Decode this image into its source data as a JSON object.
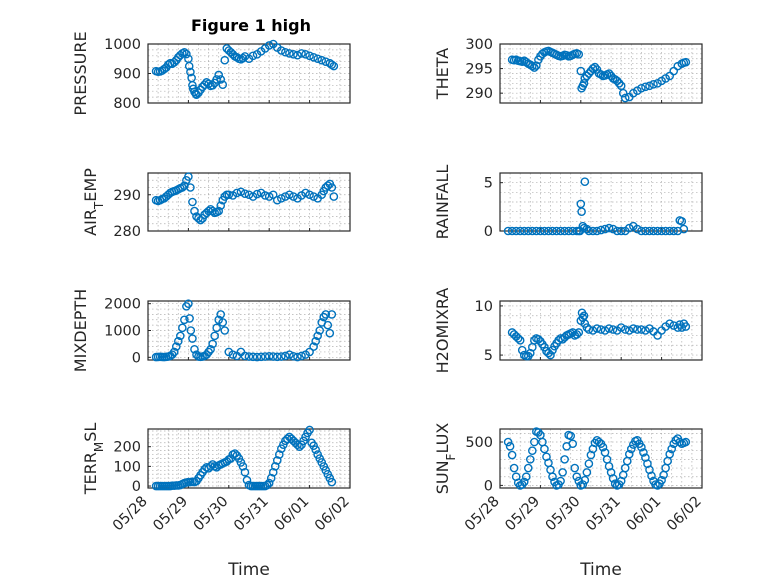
{
  "figure_title": "Figure 1 high",
  "colors": {
    "marker": "#0072BD",
    "axis": "#262626",
    "grid": "#b0b0b0"
  },
  "chart_data": [
    {
      "type": "scatter",
      "title": "Figure 1 high",
      "ylabel": "PRESSURE",
      "ylim": [
        800,
        1000
      ],
      "yticks": [
        "800",
        "900",
        "1000"
      ],
      "xlim": [
        0,
        5
      ],
      "xticks": [],
      "xlabel": "",
      "grid": true,
      "x": [
        0.2,
        0.25,
        0.3,
        0.35,
        0.4,
        0.45,
        0.5,
        0.55,
        0.6,
        0.65,
        0.7,
        0.75,
        0.8,
        0.85,
        0.9,
        0.95,
        1.0,
        1.02,
        1.05,
        1.08,
        1.1,
        1.12,
        1.15,
        1.18,
        1.2,
        1.25,
        1.3,
        1.35,
        1.4,
        1.45,
        1.5,
        1.55,
        1.6,
        1.65,
        1.7,
        1.75,
        1.8,
        1.85,
        1.9,
        1.95,
        2.0,
        2.05,
        2.1,
        2.15,
        2.2,
        2.25,
        2.3,
        2.35,
        2.4,
        2.5,
        2.6,
        2.7,
        2.8,
        2.9,
        3.0,
        3.1,
        3.2,
        3.3,
        3.4,
        3.5,
        3.6,
        3.7,
        3.8,
        3.9,
        4.0,
        4.1,
        4.2,
        4.3,
        4.4,
        4.5,
        4.55,
        4.6
      ],
      "y": [
        908,
        906,
        907,
        910,
        915,
        920,
        930,
        935,
        933,
        938,
        945,
        955,
        962,
        968,
        972,
        966,
        950,
        925,
        905,
        885,
        860,
        848,
        838,
        832,
        828,
        835,
        845,
        855,
        862,
        870,
        865,
        858,
        860,
        868,
        880,
        895,
        880,
        862,
        945,
        985,
        978,
        972,
        965,
        958,
        955,
        950,
        948,
        952,
        958,
        950,
        960,
        965,
        975,
        985,
        995,
        1000,
        988,
        978,
        972,
        968,
        965,
        962,
        968,
        965,
        960,
        955,
        950,
        945,
        940,
        935,
        930,
        925
      ]
    },
    {
      "type": "scatter",
      "ylabel": "THETA",
      "ylim": [
        288,
        300
      ],
      "yticks": [
        "290",
        "295",
        "300"
      ],
      "xlim": [
        0,
        5
      ],
      "xticks": [],
      "xlabel": "",
      "grid": true,
      "x": [
        0.3,
        0.35,
        0.4,
        0.45,
        0.5,
        0.55,
        0.6,
        0.65,
        0.7,
        0.75,
        0.8,
        0.85,
        0.9,
        0.95,
        1.0,
        1.05,
        1.1,
        1.15,
        1.2,
        1.25,
        1.3,
        1.35,
        1.4,
        1.45,
        1.5,
        1.55,
        1.6,
        1.65,
        1.7,
        1.75,
        1.8,
        1.85,
        1.9,
        1.95,
        2.0,
        2.02,
        2.05,
        2.08,
        2.1,
        2.15,
        2.2,
        2.25,
        2.3,
        2.35,
        2.4,
        2.45,
        2.5,
        2.55,
        2.6,
        2.65,
        2.7,
        2.75,
        2.8,
        2.85,
        2.9,
        2.95,
        3.0,
        3.05,
        3.1,
        3.2,
        3.3,
        3.4,
        3.5,
        3.6,
        3.7,
        3.8,
        3.9,
        4.0,
        4.1,
        4.2,
        4.3,
        4.4,
        4.5,
        4.55,
        4.6
      ],
      "y": [
        296.8,
        296.7,
        296.8,
        296.6,
        296.5,
        296.4,
        296.6,
        296.3,
        296.0,
        295.8,
        295.5,
        295.2,
        295.6,
        296.8,
        297.5,
        298.0,
        298.3,
        298.5,
        298.6,
        298.4,
        298.2,
        298.0,
        297.8,
        297.6,
        297.5,
        297.6,
        297.8,
        297.7,
        297.5,
        297.6,
        297.8,
        298.0,
        298.1,
        297.9,
        294.5,
        291.0,
        291.5,
        292.0,
        293.0,
        293.5,
        294.0,
        294.5,
        295.0,
        295.3,
        294.8,
        294.0,
        293.8,
        293.5,
        293.6,
        293.8,
        294.0,
        293.5,
        293.0,
        292.8,
        292.5,
        292.0,
        291.5,
        290.0,
        289.0,
        289.2,
        290.0,
        290.5,
        291.0,
        291.3,
        291.5,
        291.8,
        292.0,
        292.5,
        293.0,
        293.5,
        294.5,
        295.5,
        296.0,
        296.2,
        296.3
      ]
    },
    {
      "type": "scatter",
      "ylabel": "AIR_TEMP",
      "ylim": [
        280,
        296
      ],
      "yticks": [
        "280",
        "290"
      ],
      "xlim": [
        0,
        5
      ],
      "xticks": [],
      "xlabel": "",
      "grid": true,
      "x": [
        0.2,
        0.25,
        0.3,
        0.35,
        0.4,
        0.45,
        0.5,
        0.55,
        0.6,
        0.65,
        0.7,
        0.75,
        0.8,
        0.85,
        0.9,
        0.95,
        1.0,
        1.05,
        1.1,
        1.15,
        1.2,
        1.25,
        1.3,
        1.35,
        1.4,
        1.45,
        1.5,
        1.55,
        1.6,
        1.65,
        1.7,
        1.75,
        1.8,
        1.85,
        1.9,
        1.95,
        2.0,
        2.1,
        2.2,
        2.3,
        2.4,
        2.5,
        2.6,
        2.7,
        2.8,
        2.9,
        3.0,
        3.1,
        3.2,
        3.3,
        3.4,
        3.5,
        3.6,
        3.7,
        3.8,
        3.9,
        4.0,
        4.1,
        4.2,
        4.3,
        4.35,
        4.4,
        4.45,
        4.5,
        4.55,
        4.6
      ],
      "y": [
        288.5,
        288.3,
        288.5,
        288.8,
        289.0,
        289.5,
        290.0,
        290.5,
        290.8,
        291.0,
        291.2,
        291.5,
        291.8,
        292.0,
        292.5,
        294.0,
        295.0,
        292.0,
        288.0,
        285.5,
        284.0,
        283.5,
        283.0,
        283.5,
        284.5,
        285.0,
        285.5,
        286.0,
        285.5,
        285.0,
        285.2,
        285.5,
        287.0,
        288.5,
        289.5,
        290.0,
        290.0,
        289.8,
        290.5,
        290.8,
        290.3,
        290.0,
        289.5,
        290.2,
        290.5,
        289.8,
        289.5,
        290.0,
        288.5,
        289.0,
        289.5,
        290.0,
        289.5,
        289.0,
        289.8,
        290.5,
        290.0,
        289.5,
        289.0,
        290.0,
        291.0,
        292.0,
        292.5,
        293.0,
        292.0,
        289.5
      ]
    },
    {
      "type": "scatter",
      "ylabel": "RAINFALL",
      "ylim": [
        0,
        6
      ],
      "yticks": [
        "0",
        "5"
      ],
      "xlim": [
        0,
        5
      ],
      "xticks": [],
      "xlabel": "",
      "grid": true,
      "x": [
        0.2,
        0.3,
        0.4,
        0.5,
        0.6,
        0.7,
        0.8,
        0.9,
        1.0,
        1.1,
        1.2,
        1.3,
        1.4,
        1.5,
        1.6,
        1.7,
        1.8,
        1.9,
        1.95,
        1.98,
        2.0,
        2.02,
        2.05,
        2.08,
        2.1,
        2.15,
        2.2,
        2.3,
        2.4,
        2.5,
        2.6,
        2.7,
        2.8,
        2.9,
        3.0,
        3.1,
        3.2,
        3.3,
        3.4,
        3.5,
        3.6,
        3.7,
        3.8,
        3.9,
        4.0,
        4.1,
        4.2,
        4.3,
        4.4,
        4.45,
        4.5,
        4.55
      ],
      "y": [
        0,
        0,
        0,
        0,
        0,
        0,
        0,
        0,
        0,
        0,
        0,
        0,
        0,
        0,
        0,
        0,
        0,
        0,
        0,
        0,
        2.8,
        2.0,
        0.5,
        0.3,
        5.1,
        0.2,
        0,
        0,
        0,
        0.1,
        0.2,
        0.3,
        0.2,
        0,
        0,
        0,
        0.3,
        0.5,
        0.2,
        0,
        0,
        0,
        0,
        0,
        0,
        0,
        0,
        0,
        0,
        1.1,
        1.0,
        0.2
      ]
    },
    {
      "type": "scatter",
      "ylabel": "MIXDEPTH",
      "ylim": [
        -100,
        2100
      ],
      "yticks": [
        "0",
        "1000",
        "2000"
      ],
      "xlim": [
        0,
        5
      ],
      "xticks": [],
      "xlabel": "",
      "grid": true,
      "x": [
        0.2,
        0.25,
        0.3,
        0.35,
        0.4,
        0.45,
        0.5,
        0.55,
        0.6,
        0.65,
        0.7,
        0.75,
        0.8,
        0.85,
        0.9,
        0.95,
        1.0,
        1.03,
        1.06,
        1.1,
        1.15,
        1.2,
        1.25,
        1.3,
        1.35,
        1.4,
        1.45,
        1.5,
        1.55,
        1.6,
        1.65,
        1.7,
        1.75,
        1.8,
        1.85,
        1.9,
        2.0,
        2.1,
        2.2,
        2.3,
        2.4,
        2.5,
        2.6,
        2.7,
        2.8,
        2.9,
        3.0,
        3.1,
        3.2,
        3.3,
        3.4,
        3.5,
        3.6,
        3.7,
        3.8,
        3.9,
        4.0,
        4.1,
        4.15,
        4.2,
        4.25,
        4.3,
        4.35,
        4.4,
        4.45,
        4.5,
        4.55
      ],
      "y": [
        10,
        15,
        20,
        15,
        10,
        20,
        30,
        50,
        100,
        200,
        400,
        600,
        800,
        1100,
        1400,
        1900,
        2000,
        1450,
        1000,
        700,
        300,
        100,
        30,
        20,
        30,
        50,
        100,
        200,
        300,
        500,
        800,
        1100,
        1400,
        1600,
        1300,
        1000,
        200,
        100,
        50,
        200,
        50,
        30,
        20,
        10,
        20,
        30,
        40,
        30,
        20,
        30,
        50,
        100,
        40,
        10,
        50,
        100,
        200,
        400,
        600,
        800,
        1000,
        1300,
        1500,
        1600,
        1200,
        900,
        1600
      ]
    },
    {
      "type": "scatter",
      "ylabel": "H2OMIXRA",
      "ylim": [
        4.5,
        10.5
      ],
      "yticks": [
        "5",
        "10"
      ],
      "xlim": [
        0,
        5
      ],
      "xticks": [],
      "xlabel": "",
      "grid": true,
      "x": [
        0.3,
        0.35,
        0.4,
        0.45,
        0.5,
        0.55,
        0.6,
        0.65,
        0.7,
        0.75,
        0.8,
        0.85,
        0.9,
        0.95,
        1.0,
        1.05,
        1.1,
        1.15,
        1.2,
        1.25,
        1.3,
        1.35,
        1.4,
        1.45,
        1.5,
        1.55,
        1.6,
        1.65,
        1.7,
        1.75,
        1.8,
        1.85,
        1.9,
        1.95,
        2.0,
        2.03,
        2.05,
        2.08,
        2.1,
        2.15,
        2.2,
        2.3,
        2.4,
        2.5,
        2.6,
        2.7,
        2.8,
        2.9,
        3.0,
        3.1,
        3.2,
        3.3,
        3.4,
        3.5,
        3.6,
        3.7,
        3.8,
        3.9,
        4.0,
        4.1,
        4.2,
        4.3,
        4.4,
        4.45,
        4.5,
        4.55,
        4.6
      ],
      "y": [
        7.3,
        7.1,
        6.9,
        6.7,
        6.5,
        5.5,
        5.0,
        4.9,
        4.9,
        5.2,
        5.8,
        6.5,
        6.7,
        6.6,
        6.4,
        6.1,
        5.8,
        5.4,
        5.2,
        5.0,
        5.5,
        5.9,
        6.2,
        6.5,
        6.7,
        6.6,
        6.8,
        7.0,
        7.1,
        7.2,
        7.3,
        7.0,
        7.1,
        7.3,
        8.5,
        9.3,
        8.8,
        9.0,
        8.2,
        7.8,
        7.6,
        7.5,
        7.7,
        7.6,
        7.5,
        7.7,
        7.6,
        7.5,
        7.8,
        7.6,
        7.5,
        7.7,
        7.6,
        7.6,
        7.5,
        7.7,
        7.4,
        7.0,
        7.5,
        7.9,
        8.2,
        8.0,
        7.8,
        8.1,
        7.8,
        8.2,
        7.9
      ]
    },
    {
      "type": "scatter",
      "ylabel": "TERR_MSL",
      "ylim": [
        -10,
        290
      ],
      "yticks": [
        "0",
        "100",
        "200"
      ],
      "xlim": [
        0,
        5
      ],
      "xticks": [
        "05/28",
        "05/29",
        "05/30",
        "05/31",
        "06/01",
        "06/02"
      ],
      "xlabel": "Time",
      "grid": true,
      "x": [
        0.2,
        0.25,
        0.3,
        0.35,
        0.4,
        0.45,
        0.5,
        0.55,
        0.6,
        0.65,
        0.7,
        0.75,
        0.8,
        0.85,
        0.9,
        0.95,
        1.0,
        1.05,
        1.1,
        1.15,
        1.2,
        1.25,
        1.3,
        1.35,
        1.4,
        1.45,
        1.5,
        1.55,
        1.6,
        1.65,
        1.7,
        1.75,
        1.8,
        1.85,
        1.9,
        1.95,
        2.0,
        2.05,
        2.1,
        2.15,
        2.2,
        2.25,
        2.3,
        2.35,
        2.4,
        2.45,
        2.5,
        2.55,
        2.6,
        2.65,
        2.7,
        2.75,
        2.8,
        2.85,
        2.9,
        2.95,
        3.0,
        3.05,
        3.1,
        3.15,
        3.2,
        3.25,
        3.3,
        3.35,
        3.4,
        3.45,
        3.5,
        3.55,
        3.6,
        3.65,
        3.7,
        3.75,
        3.8,
        3.85,
        3.9,
        3.95,
        4.0,
        4.05,
        4.1,
        4.15,
        4.2,
        4.25,
        4.3,
        4.35,
        4.4,
        4.45,
        4.5,
        4.55
      ],
      "y": [
        0,
        0,
        0,
        0,
        0,
        0,
        0,
        0,
        2,
        2,
        3,
        3,
        5,
        10,
        15,
        18,
        20,
        20,
        22,
        20,
        25,
        40,
        55,
        70,
        85,
        95,
        90,
        100,
        110,
        100,
        95,
        105,
        110,
        115,
        120,
        125,
        135,
        140,
        160,
        165,
        155,
        140,
        120,
        100,
        70,
        30,
        5,
        0,
        0,
        0,
        0,
        0,
        0,
        0,
        0,
        5,
        15,
        40,
        70,
        100,
        130,
        160,
        190,
        210,
        230,
        240,
        250,
        240,
        230,
        220,
        210,
        200,
        210,
        230,
        250,
        270,
        285,
        220,
        205,
        185,
        160,
        140,
        120,
        100,
        80,
        60,
        40,
        20
      ]
    },
    {
      "type": "scatter",
      "ylabel": "SUN_FLUX",
      "ylim": [
        -30,
        650
      ],
      "yticks": [
        "0",
        "500"
      ],
      "xlim": [
        0,
        5
      ],
      "xticks": [
        "05/28",
        "05/29",
        "05/30",
        "05/31",
        "06/01",
        "06/02"
      ],
      "xlabel": "Time",
      "grid": true,
      "x": [
        0.2,
        0.25,
        0.3,
        0.35,
        0.4,
        0.45,
        0.5,
        0.55,
        0.6,
        0.65,
        0.7,
        0.75,
        0.8,
        0.85,
        0.9,
        0.95,
        1.0,
        1.05,
        1.1,
        1.15,
        1.2,
        1.25,
        1.3,
        1.35,
        1.4,
        1.45,
        1.5,
        1.55,
        1.6,
        1.65,
        1.7,
        1.75,
        1.8,
        1.85,
        1.9,
        1.95,
        2.0,
        2.05,
        2.1,
        2.15,
        2.2,
        2.25,
        2.3,
        2.35,
        2.4,
        2.45,
        2.5,
        2.55,
        2.6,
        2.65,
        2.7,
        2.75,
        2.8,
        2.85,
        2.9,
        2.95,
        3.0,
        3.05,
        3.1,
        3.15,
        3.2,
        3.25,
        3.3,
        3.35,
        3.4,
        3.45,
        3.5,
        3.55,
        3.6,
        3.65,
        3.7,
        3.75,
        3.8,
        3.85,
        3.9,
        3.95,
        4.0,
        4.05,
        4.1,
        4.15,
        4.2,
        4.25,
        4.3,
        4.35,
        4.4,
        4.45,
        4.5,
        4.55,
        4.6
      ],
      "y": [
        500,
        450,
        350,
        200,
        100,
        30,
        0,
        10,
        40,
        100,
        200,
        300,
        400,
        500,
        620,
        610,
        580,
        500,
        420,
        330,
        260,
        180,
        100,
        40,
        0,
        10,
        50,
        150,
        300,
        450,
        580,
        570,
        480,
        200,
        100,
        50,
        0,
        10,
        60,
        150,
        250,
        350,
        420,
        490,
        520,
        500,
        480,
        440,
        380,
        300,
        220,
        150,
        80,
        20,
        0,
        10,
        50,
        120,
        200,
        280,
        360,
        420,
        470,
        510,
        520,
        480,
        440,
        380,
        320,
        250,
        180,
        110,
        50,
        10,
        0,
        20,
        60,
        120,
        200,
        280,
        360,
        420,
        480,
        520,
        540,
        500,
        480,
        490,
        500
      ]
    }
  ]
}
